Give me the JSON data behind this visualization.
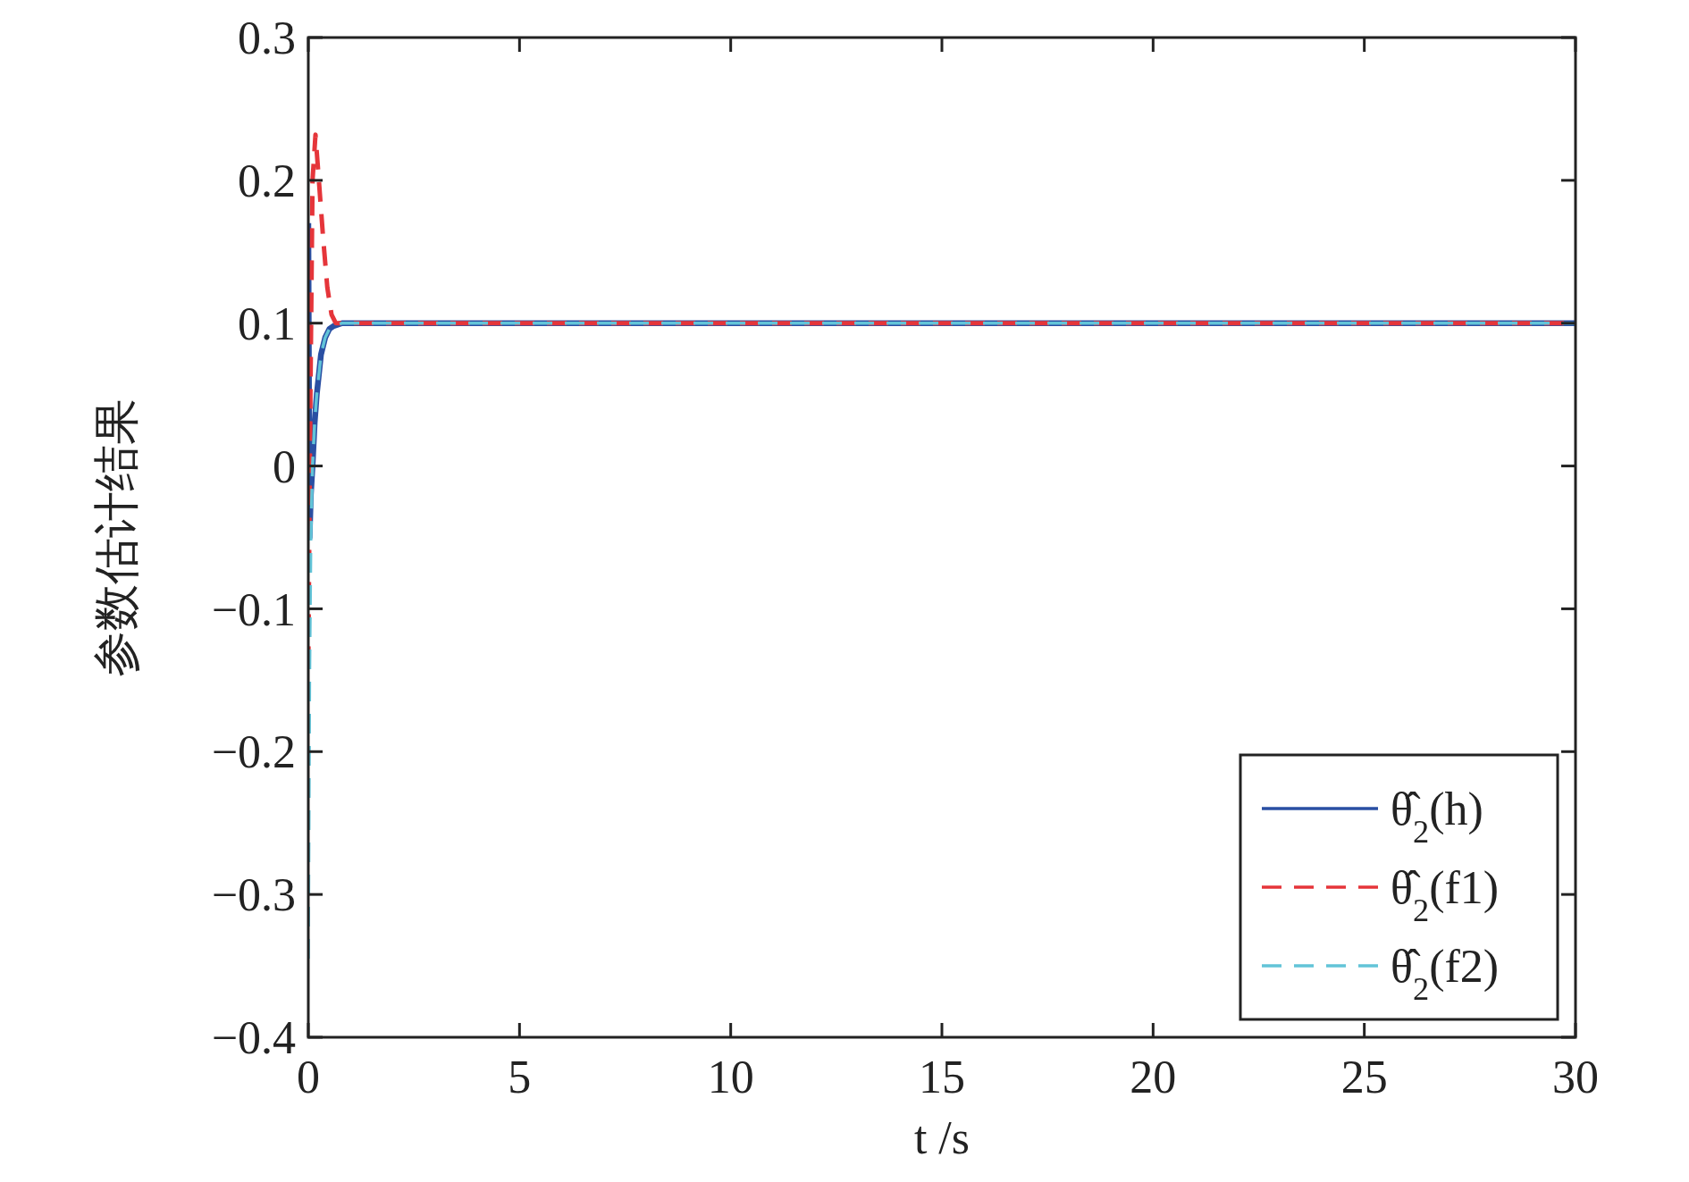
{
  "chart_data": {
    "type": "line",
    "xlabel": "t /s",
    "ylabel": "参数估计结果",
    "xlim": [
      0,
      30
    ],
    "ylim": [
      -0.4,
      0.3
    ],
    "xticks": [
      0,
      5,
      10,
      15,
      20,
      25,
      30
    ],
    "yticks": [
      -0.4,
      -0.3,
      -0.2,
      -0.1,
      0,
      0.1,
      0.2,
      0.3
    ],
    "grid": false,
    "legend": "bottom right",
    "series": [
      {
        "name": "θ̂$_{2}$(h)",
        "color": "#2a4fa3",
        "line_style": "solid",
        "x": [
          0,
          0.03,
          0.06,
          0.1,
          0.15,
          0.2,
          0.3,
          0.4,
          0.5,
          0.6,
          0.8,
          1,
          30
        ],
        "values": [
          0.17,
          -0.05,
          -0.02,
          0,
          0.03,
          0.05,
          0.078,
          0.09,
          0.096,
          0.098,
          0.1,
          0.1,
          0.1
        ]
      },
      {
        "name": "θ̂$_{2}$(f1)",
        "color": "#e5353a",
        "line_style": "dashed",
        "x": [
          0,
          0.05,
          0.1,
          0.17,
          0.25,
          0.35,
          0.45,
          0.55,
          0.65,
          1,
          30
        ],
        "values": [
          -0.14,
          0.05,
          0.2,
          0.232,
          0.2,
          0.16,
          0.125,
          0.106,
          0.1,
          0.1,
          0.1
        ]
      },
      {
        "name": "θ̂$_{2}$(f2)",
        "color": "#62c4d8",
        "line_style": "dashed",
        "x": [
          0,
          0.03,
          0.06,
          0.1,
          0.15,
          0.2,
          0.3,
          0.4,
          0.5,
          0.6,
          0.8,
          1,
          30
        ],
        "values": [
          -0.345,
          -0.15,
          -0.05,
          0,
          0.03,
          0.05,
          0.078,
          0.09,
          0.096,
          0.098,
          0.1,
          0.1,
          0.1
        ]
      }
    ]
  }
}
